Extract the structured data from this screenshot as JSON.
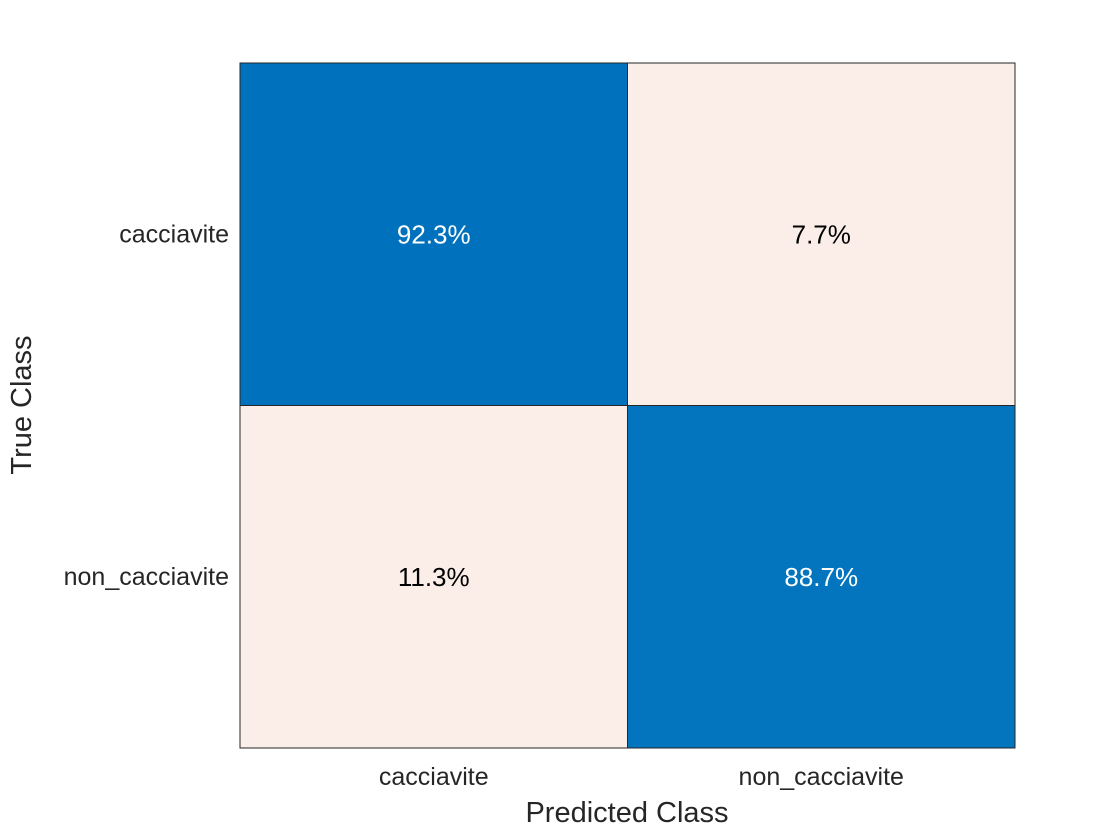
{
  "chart_data": {
    "type": "heatmap",
    "title": "",
    "xlabel": "Predicted Class",
    "ylabel": "True Class",
    "x_categories": [
      "cacciavite",
      "non_cacciavite"
    ],
    "y_categories": [
      "cacciavite",
      "non_cacciavite"
    ],
    "values": [
      [
        92.3,
        7.7
      ],
      [
        11.3,
        88.7
      ]
    ],
    "cell_labels": [
      [
        "92.3%",
        "7.7%"
      ],
      [
        "11.3%",
        "88.7%"
      ]
    ],
    "grid": false,
    "legend": "none",
    "colors": {
      "high": "#0072bd",
      "low": "#ffffff",
      "low_tint": "#d95319",
      "text_on_dark": "#ffffff",
      "text_on_light": "#000000"
    }
  }
}
